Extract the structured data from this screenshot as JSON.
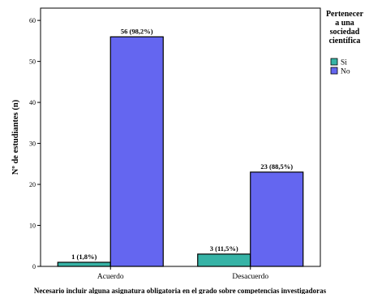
{
  "chart_data": {
    "type": "bar",
    "categories": [
      "Acuerdo",
      "Desacuerdo"
    ],
    "series": [
      {
        "name": "Si",
        "values": [
          1,
          3
        ],
        "labels": [
          "1 (1,8%)",
          "3 (11,5%)"
        ]
      },
      {
        "name": "No",
        "values": [
          56,
          23
        ],
        "labels": [
          "56 (98,2%)",
          "23 (88,5%)"
        ]
      }
    ],
    "ylabel": "Nº de estudiantes (n)",
    "xlabel": "Necesario incluir alguna asignatura obligatoria en el grado sobre competencias investigadoras",
    "yticks": [
      "0",
      "10",
      "20",
      "30",
      "40",
      "50",
      "60"
    ],
    "ylim": [
      0,
      63
    ],
    "legend": {
      "title": [
        "Pertenecer",
        "a una",
        "sociedad",
        "científica"
      ],
      "placement": "right"
    },
    "colors": {
      "Si": "#36b3a6",
      "No": "#6466f0"
    }
  }
}
